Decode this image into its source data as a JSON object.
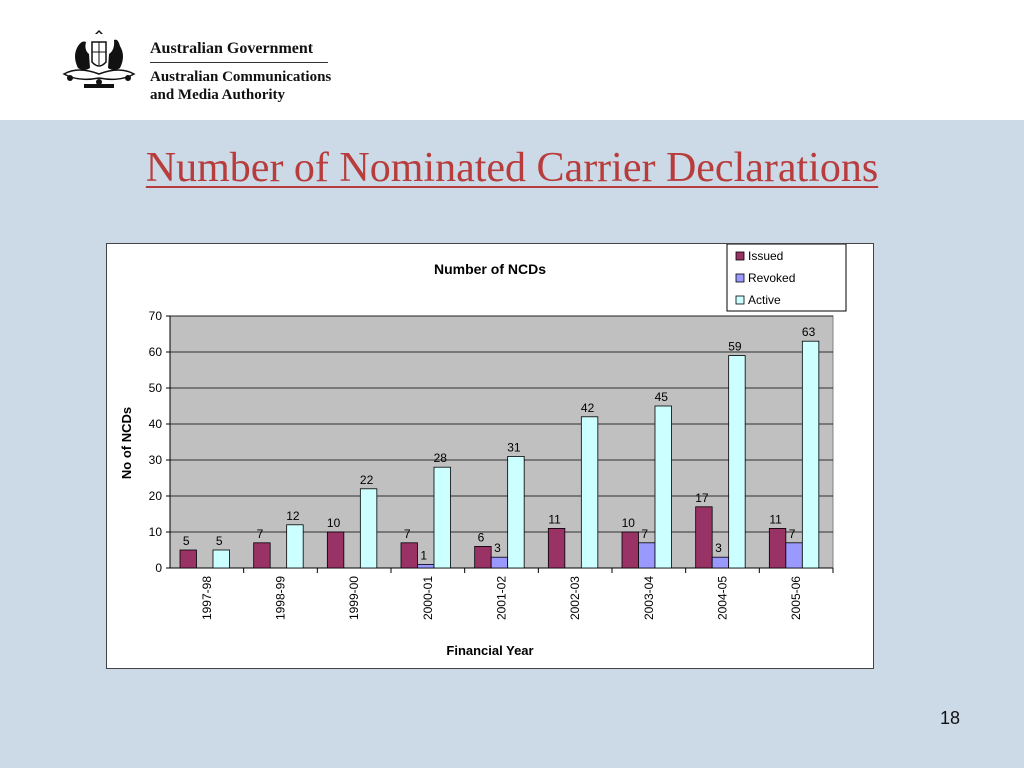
{
  "header": {
    "gov_line1": "Australian Government",
    "gov_line2": "Australian Communications",
    "gov_line3": "and Media Authority"
  },
  "slide": {
    "title": "Number of Nominated Carrier Declarations",
    "page_number": "18"
  },
  "colors": {
    "issued": "#993366",
    "revoked": "#9999ff",
    "active": "#ccffff",
    "plot_area": "#c0c0c0",
    "background": "#ccd9e6",
    "title": "#b83c3c"
  },
  "chart_data": {
    "type": "bar",
    "title": "Number of NCDs",
    "xlabel": "Financial Year",
    "ylabel": "No of NCDs",
    "ylim": [
      0,
      70
    ],
    "yticks": [
      0,
      10,
      20,
      30,
      40,
      50,
      60,
      70
    ],
    "grid": true,
    "legend_position": "top-right",
    "categories": [
      "1997-98",
      "1998-99",
      "1999-00",
      "2000-01",
      "2001-02",
      "2002-03",
      "2003-04",
      "2004-05",
      "2005-06"
    ],
    "series": [
      {
        "name": "Issued",
        "values": [
          5,
          7,
          10,
          7,
          6,
          11,
          10,
          17,
          11
        ]
      },
      {
        "name": "Revoked",
        "values": [
          0,
          0,
          0,
          1,
          3,
          0,
          7,
          3,
          7
        ]
      },
      {
        "name": "Active",
        "values": [
          5,
          12,
          22,
          28,
          31,
          42,
          45,
          59,
          63
        ]
      }
    ]
  }
}
